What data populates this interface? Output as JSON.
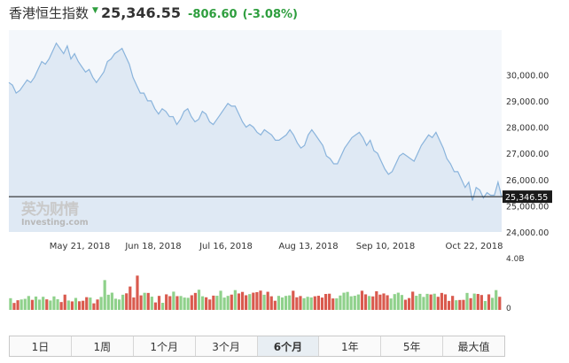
{
  "header": {
    "title": "香港恒生指数",
    "direction_icon": "triangle-down-icon",
    "price": "25,346.55",
    "change": "-806.60",
    "change_pct": "(-3.08%)",
    "change_color": "#2e9e3e"
  },
  "watermark": {
    "brand": "英为财情",
    "sub": "Investing.com"
  },
  "chart_data": {
    "type": "area",
    "series": [
      {
        "values": [
          29700,
          29600,
          29300,
          29400,
          29600,
          29800,
          29700,
          29900,
          30200,
          30500,
          30400,
          30600,
          30900,
          31200,
          31000,
          30800,
          31100,
          30600,
          30800,
          30500,
          30300,
          30100,
          30200,
          29900,
          29700,
          29900,
          30100,
          30500,
          30600,
          30800,
          30900,
          31000,
          30700,
          30400,
          29900,
          29600,
          29300,
          29300,
          29000,
          29000,
          28700,
          28500,
          28700,
          28600,
          28400,
          28400,
          28100,
          28300,
          28600,
          28700,
          28400,
          28200,
          28300,
          28600,
          28500,
          28200,
          28100,
          28300,
          28500,
          28700,
          28900,
          28800,
          28800,
          28500,
          28200,
          28000,
          28100,
          28000,
          27800,
          27700,
          27900,
          27800,
          27700,
          27500,
          27500,
          27600,
          27700,
          27900,
          27700,
          27400,
          27200,
          27300,
          27700,
          27900,
          27700,
          27500,
          27300,
          26900,
          26800,
          26600,
          26600,
          26900,
          27200,
          27400,
          27600,
          27700,
          27800,
          27600,
          27300,
          27500,
          27100,
          27000,
          26700,
          26400,
          26200,
          26300,
          26600,
          26900,
          27000,
          26900,
          26800,
          26700,
          27000,
          27300,
          27500,
          27700,
          27600,
          27800,
          27500,
          27200,
          26800,
          26600,
          26300,
          26300,
          26000,
          25700,
          25900,
          25200,
          25700,
          25600,
          25300,
          25500,
          25400,
          25400,
          25900,
          25346.55
        ]
      }
    ],
    "x_tick_labels": [
      "May 21, 2018",
      "Jun 18, 2018",
      "Jul 16, 2018",
      "Aug 13, 2018",
      "Sep 10, 2018",
      "Oct 22, 2018"
    ],
    "y_ticks": [
      "24,000.00",
      "25,000.00",
      "26,000.00",
      "27,000.00",
      "28,000.00",
      "29,000.00",
      "30,000.00"
    ],
    "ylim": [
      24000,
      31700
    ],
    "last_value_label": "25,346.55",
    "volume": {
      "axis_labels": [
        "4.0B",
        "0"
      ],
      "ylim": [
        0,
        4.0
      ],
      "values": [
        0.91,
        0.54,
        0.75,
        0.81,
        0.86,
        1.08,
        0.78,
        1.04,
        0.8,
        1.02,
        0.82,
        0.73,
        1.05,
        0.83,
        0.61,
        1.19,
        0.73,
        0.66,
        0.93,
        0.67,
        0.71,
        0.99,
        0.96,
        0.51,
        0.81,
        1.01,
        2.32,
        1.18,
        1.34,
        0.87,
        0.81,
        1.18,
        1.29,
        1.82,
        0.97,
        2.67,
        1.13,
        1.33,
        1.32,
        1.03,
        0.58,
        1.09,
        0.55,
        1.21,
        1.07,
        1.42,
        1.07,
        1.08,
        0.96,
        0.94,
        1.14,
        1.32,
        1.57,
        1.06,
        0.98,
        0.81,
        1.11,
        1.1,
        1.49,
        0.96,
        1.09,
        1.19,
        1.54,
        1.28,
        1.4,
        1.14,
        1.23,
        1.34,
        1.38,
        1.5,
        1.18,
        1.41,
        1.06,
        0.71,
        1.09,
        0.97,
        1.09,
        1.13,
        1.49,
        0.98,
        1.08,
        0.91,
        1.02,
        0.97,
        1.06,
        1.1,
        0.96,
        1.24,
        1.26,
        0.89,
        0.9,
        1.12,
        1.34,
        1.4,
        1.06,
        1.1,
        1.2,
        1.49,
        1.21,
        1.08,
        1.05,
        1.45,
        1.19,
        1.28,
        1.14,
        0.89,
        1.23,
        1.34,
        1.16,
        0.79,
        0.92,
        1.42,
        1.1,
        1.25,
        1.01,
        1.25,
        1.2,
        1.26,
        1.02,
        1.32,
        1.21,
        0.7,
        1.09,
        0.75,
        0.77,
        0.78,
        1.32,
        0.91,
        1.27,
        1.24,
        1.16,
        0.69,
        1.21,
        0.94,
        1.54,
        1.02
      ],
      "up_color": "#8fd18b",
      "down_color": "#d95a4e"
    },
    "line_color": "#8ab4dc",
    "fill_color": "#dfe9f4",
    "grid": false
  },
  "range_tabs": {
    "items": [
      "1日",
      "1周",
      "1个月",
      "3个月",
      "6个月",
      "1年",
      "5年",
      "最大值"
    ],
    "active": "6个月"
  }
}
